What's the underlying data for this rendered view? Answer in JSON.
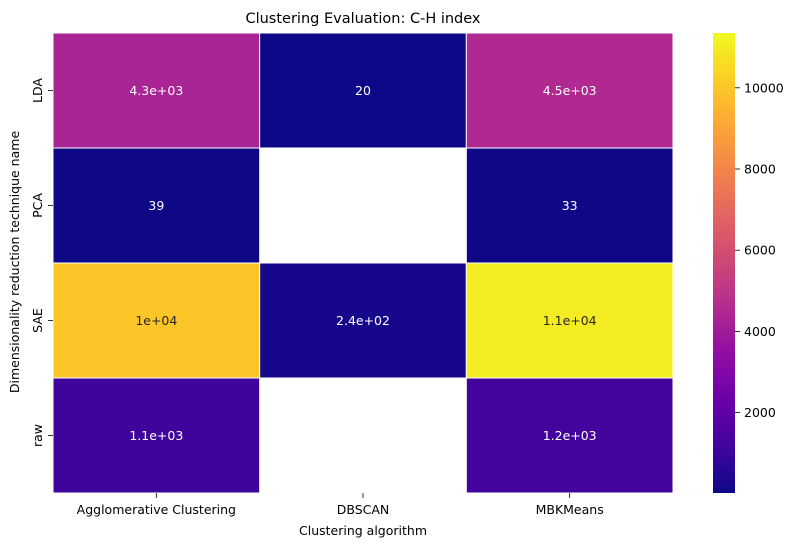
{
  "chart_data": {
    "type": "heatmap",
    "title": "Clustering Evaluation: C-H index",
    "xlabel": "Clustering algorithm",
    "ylabel": "Dimensionality reduction technique name",
    "x_categories": [
      "Agglomerative Clustering",
      "DBSCAN",
      "MBKMeans"
    ],
    "y_categories": [
      "LDA",
      "PCA",
      "SAE",
      "raw"
    ],
    "values": [
      [
        4300,
        20,
        4500
      ],
      [
        39,
        null,
        33
      ],
      [
        10000,
        240,
        11000
      ],
      [
        1100,
        null,
        1200
      ]
    ],
    "annotations": [
      [
        "4.3e+03",
        "20",
        "4.5e+03"
      ],
      [
        "39",
        "",
        "33"
      ],
      [
        "1e+04",
        "2.4e+02",
        "1.1e+04"
      ],
      [
        "1.1e+03",
        "",
        "1.2e+03"
      ]
    ],
    "colormap": "plasma",
    "colorbar": {
      "vmin": 20,
      "vmax": 11350,
      "ticks": [
        2000,
        4000,
        6000,
        8000,
        10000
      ],
      "tick_labels": [
        "2000",
        "4000",
        "6000",
        "8000",
        "10000"
      ]
    },
    "missing_color": "#ffffff",
    "grid": false
  }
}
